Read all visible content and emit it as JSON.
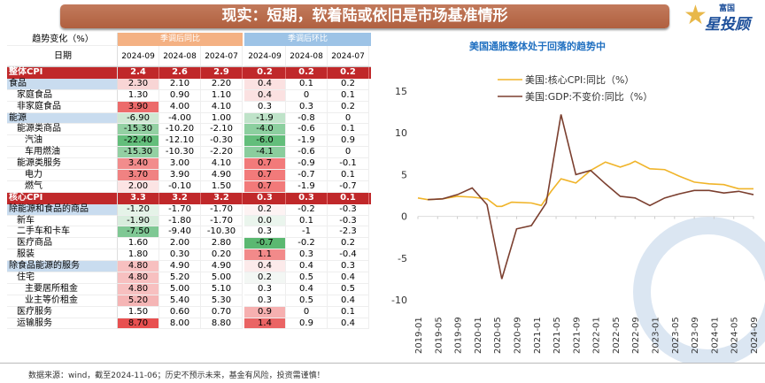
{
  "title": "现实：短期，软着陆或依旧是市场基准情形",
  "logo": {
    "top": "富国",
    "main": "星投顾"
  },
  "table": {
    "header_label": "趋势变化（%）",
    "group_yoy": "季调后同比",
    "group_mom": "季调后环比",
    "date_label": "日期",
    "dates": [
      "2024-09",
      "2024-08",
      "2024-07",
      "2024-09",
      "2024-08",
      "2024-07"
    ],
    "rows": [
      {
        "label": "整体CPI",
        "type": "total",
        "indent": 0,
        "values": [
          "2.4",
          "2.6",
          "2.9",
          "0.2",
          "0.2",
          "0.2"
        ],
        "colors": [
          "",
          "",
          ""
        ]
      },
      {
        "label": "食品",
        "type": "cat",
        "indent": 0,
        "values": [
          "2.30",
          "2.10",
          "2.20",
          "0.4",
          "0.1",
          "0.2"
        ],
        "colors": [
          "#f8d5d5",
          "#fbe1e1"
        ]
      },
      {
        "label": "家庭食品",
        "type": "",
        "indent": 1,
        "values": [
          "1.30",
          "0.90",
          "1.10",
          "0.4",
          "0",
          "0.1"
        ],
        "colors": [
          "#fff",
          "#fbe1e1"
        ]
      },
      {
        "label": "非家庭食品",
        "type": "",
        "indent": 1,
        "values": [
          "3.90",
          "4.00",
          "4.10",
          "0.3",
          "0.3",
          "0.2"
        ],
        "colors": [
          "#ec6b6b",
          "#fff"
        ]
      },
      {
        "label": "能源",
        "type": "cat",
        "indent": 0,
        "values": [
          "-6.90",
          "-4.00",
          "1.00",
          "-1.9",
          "-0.8",
          "0"
        ],
        "colors": [
          "#cfe8d3",
          "#bfe3c9"
        ]
      },
      {
        "label": "能源类商品",
        "type": "",
        "indent": 1,
        "values": [
          "-15.30",
          "-10.20",
          "-2.10",
          "-4.0",
          "-0.6",
          "0.1"
        ],
        "colors": [
          "#93d0a3",
          "#8ccf9f"
        ]
      },
      {
        "label": "汽油",
        "type": "",
        "indent": 2,
        "values": [
          "-22.40",
          "-12.10",
          "-0.30",
          "-6.0",
          "-1.9",
          "0.9"
        ],
        "colors": [
          "#63be7b",
          "#63be7b"
        ]
      },
      {
        "label": "车用燃油",
        "type": "",
        "indent": 2,
        "values": [
          "-15.30",
          "-10.30",
          "-2.20",
          "-4.1",
          "-0.6",
          "0"
        ],
        "colors": [
          "#93d0a3",
          "#8acd9d"
        ]
      },
      {
        "label": "能源类服务",
        "type": "",
        "indent": 1,
        "values": [
          "3.40",
          "3.00",
          "4.10",
          "0.7",
          "-0.9",
          "-0.1"
        ],
        "colors": [
          "#f28c8c",
          "#f27a7a"
        ]
      },
      {
        "label": "电力",
        "type": "",
        "indent": 2,
        "values": [
          "3.70",
          "3.90",
          "4.90",
          "0.7",
          "-0.7",
          "0.1"
        ],
        "colors": [
          "#f08282",
          "#f27a7a"
        ]
      },
      {
        "label": "燃气",
        "type": "",
        "indent": 2,
        "values": [
          "2.00",
          "-0.10",
          "1.50",
          "0.7",
          "-1.9",
          "-0.7"
        ],
        "colors": [
          "#fce4e4",
          "#f27a7a"
        ]
      },
      {
        "label": "核心CPI",
        "type": "total",
        "indent": 0,
        "values": [
          "3.3",
          "3.2",
          "3.2",
          "0.3",
          "0.3",
          "0.1"
        ],
        "colors": [
          "",
          ""
        ]
      },
      {
        "label": "除能源和食品的商品",
        "type": "cat",
        "indent": 0,
        "values": [
          "-1.20",
          "-1.70",
          "-1.70",
          "0.2",
          "-0.2",
          "-0.3"
        ],
        "colors": [
          "#e5f3e8",
          "#fdf3f3"
        ]
      },
      {
        "label": "新车",
        "type": "",
        "indent": 1,
        "values": [
          "-1.90",
          "-1.80",
          "-1.70",
          "0.0",
          "0.1",
          "-0.3"
        ],
        "colors": [
          "#d8eddd",
          "#eaf5ed"
        ]
      },
      {
        "label": "二手车和卡车",
        "type": "",
        "indent": 1,
        "values": [
          "-7.50",
          "-9.40",
          "-10.30",
          "0.3",
          "-1",
          "-2.3"
        ],
        "colors": [
          "#7fc894",
          "#fff"
        ]
      },
      {
        "label": "医疗商品",
        "type": "",
        "indent": 1,
        "values": [
          "1.60",
          "2.00",
          "2.80",
          "-0.7",
          "-0.2",
          "0.2"
        ],
        "colors": [
          "#fff",
          "#5bb871"
        ]
      },
      {
        "label": "服装",
        "type": "",
        "indent": 1,
        "values": [
          "1.80",
          "0.30",
          "0.20",
          "1.1",
          "0.3",
          "-0.4"
        ],
        "colors": [
          "#fff",
          "#f28a8a"
        ]
      },
      {
        "label": "除食品能源的服务",
        "type": "cat",
        "indent": 0,
        "values": [
          "4.80",
          "4.90",
          "4.90",
          "0.4",
          "0.4",
          "0.3"
        ],
        "colors": [
          "#f7c0c0",
          "#fceaea"
        ]
      },
      {
        "label": "住宅",
        "type": "",
        "indent": 1,
        "values": [
          "4.80",
          "5.20",
          "5.00",
          "0.2",
          "0.5",
          "0.4"
        ],
        "colors": [
          "#f7c0c0",
          "#f3f7f4"
        ]
      },
      {
        "label": "主要居所租金",
        "type": "",
        "indent": 2,
        "values": [
          "4.80",
          "5.00",
          "5.10",
          "0.3",
          "0.4",
          "0.5"
        ],
        "colors": [
          "#f7c0c0",
          "#fff"
        ]
      },
      {
        "label": "业主等价租金",
        "type": "",
        "indent": 2,
        "values": [
          "5.20",
          "5.40",
          "5.30",
          "0.3",
          "0.5",
          "0.4"
        ],
        "colors": [
          "#f5b5b5",
          "#fff"
        ]
      },
      {
        "label": "医疗服务",
        "type": "",
        "indent": 1,
        "values": [
          "1.50",
          "0.60",
          "0.70",
          "0.9",
          "0",
          "0.1"
        ],
        "colors": [
          "#fff",
          "#f6b0b0"
        ]
      },
      {
        "label": "运输服务",
        "type": "",
        "indent": 1,
        "values": [
          "8.70",
          "8.00",
          "8.80",
          "1.4",
          "0.9",
          "0.4"
        ],
        "colors": [
          "#e85050",
          "#ea6464"
        ]
      }
    ]
  },
  "source": "数据来源：wind，截至2024-11-06；历史不预示未来，基金有风险，投资需谨慎！",
  "chart_data": {
    "type": "line",
    "title": "美国通胀整体处于回落的趋势中",
    "ylim": [
      -10,
      15
    ],
    "yticks": [
      15,
      10,
      5,
      0,
      -5,
      -10
    ],
    "xticks": [
      "2019-01",
      "2019-05",
      "2019-09",
      "2020-01",
      "2020-05",
      "2020-09",
      "2021-01",
      "2021-05",
      "2021-09",
      "2022-01",
      "2022-05",
      "2022-09",
      "2023-01",
      "2023-05",
      "2023-09",
      "2024-01",
      "2024-05",
      "2024-09"
    ],
    "legend_position": "top",
    "series": [
      {
        "name": "美国:核心CPI:同比（%）",
        "color": "#f0b429",
        "x": [
          "2019-01",
          "2019-03",
          "2019-06",
          "2019-09",
          "2019-12",
          "2020-03",
          "2020-05",
          "2020-06",
          "2020-08",
          "2020-12",
          "2021-02",
          "2021-04",
          "2021-06",
          "2021-09",
          "2021-12",
          "2022-03",
          "2022-06",
          "2022-08",
          "2022-09",
          "2022-12",
          "2023-03",
          "2023-06",
          "2023-09",
          "2023-12",
          "2024-03",
          "2024-06",
          "2024-09"
        ],
        "values": [
          2.2,
          2.0,
          2.1,
          2.4,
          2.3,
          2.1,
          1.2,
          1.2,
          1.7,
          1.6,
          1.3,
          3.0,
          4.5,
          4.0,
          5.5,
          6.5,
          5.9,
          6.3,
          6.6,
          5.7,
          5.6,
          4.8,
          4.1,
          3.9,
          3.8,
          3.3,
          3.3
        ]
      },
      {
        "name": "美国:GDP:不变价:同比（%）",
        "color": "#7b3f2f",
        "x": [
          "2019-03",
          "2019-06",
          "2019-09",
          "2019-12",
          "2020-03",
          "2020-06",
          "2020-09",
          "2020-12",
          "2021-03",
          "2021-06",
          "2021-09",
          "2021-12",
          "2022-03",
          "2022-06",
          "2022-09",
          "2022-12",
          "2023-03",
          "2023-06",
          "2023-09",
          "2023-12",
          "2024-03",
          "2024-06",
          "2024-09"
        ],
        "values": [
          2.0,
          2.1,
          2.6,
          3.4,
          1.4,
          -7.5,
          -1.5,
          -1.1,
          1.6,
          12.2,
          5.0,
          5.5,
          3.9,
          2.4,
          2.2,
          1.3,
          2.2,
          2.7,
          3.1,
          3.1,
          2.8,
          3.0,
          2.6
        ]
      }
    ]
  }
}
